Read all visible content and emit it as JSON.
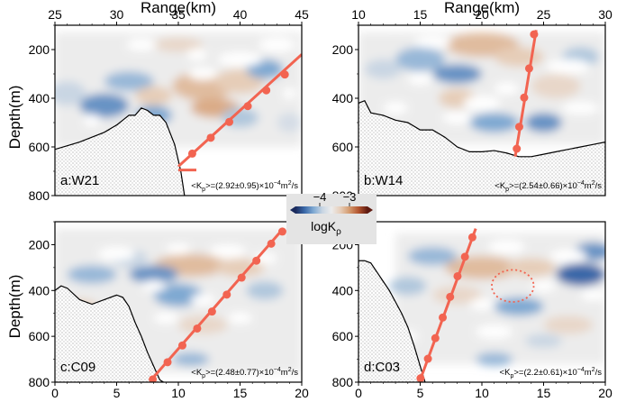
{
  "axis_titles": {
    "range": "Range(km)",
    "depth": "Depth(m)"
  },
  "colorbar": {
    "label": "logK",
    "label_sub": "ρ",
    "ticks": [
      {
        "value": -4,
        "label": "−4"
      },
      {
        "value": -3,
        "label": "−3"
      }
    ],
    "range": [
      -4.8,
      -2.4
    ],
    "colors": [
      "#1a2a5c",
      "#3a68a8",
      "#7fa9d2",
      "#c9d6e3",
      "#ececec",
      "#e6cdb8",
      "#d49a6e",
      "#b3552f",
      "#5e1a10"
    ]
  },
  "colors": {
    "trench_line": "#f26451",
    "seafloor": "#000000"
  },
  "chart_data": [
    {
      "type": "heatmap",
      "panel_label": "a:W21",
      "xaxis": "top",
      "yaxis": "left",
      "xlim": [
        25,
        45
      ],
      "ylim": [
        800,
        100
      ],
      "xticks": [
        "25",
        "30",
        "35",
        "40",
        "45"
      ],
      "yticks": [
        "200",
        "400",
        "600",
        "800"
      ],
      "annotation": {
        "pre": "<K",
        "sub1": "p",
        "mid": ">=(2.92±0.95)×10",
        "sup": "−4",
        "post1": "m",
        "sup2": "2",
        "post2": "/s"
      },
      "seafloor_profile": [
        [
          25,
          610
        ],
        [
          26,
          595
        ],
        [
          27,
          580
        ],
        [
          28,
          560
        ],
        [
          29,
          540
        ],
        [
          30,
          510
        ],
        [
          30.5,
          490
        ],
        [
          31,
          470
        ],
        [
          31.5,
          470
        ],
        [
          32,
          440
        ],
        [
          32.5,
          450
        ],
        [
          33,
          470
        ],
        [
          33.5,
          470
        ],
        [
          34,
          500
        ],
        [
          34.7,
          590
        ],
        [
          35.2,
          700
        ],
        [
          35.5,
          800
        ]
      ],
      "trench_line": [
        [
          35,
          680
        ],
        [
          45,
          220
        ]
      ],
      "trench_bar_y": 695,
      "trench_dots": [
        [
          36.2,
          620
        ],
        [
          37.7,
          555
        ],
        [
          39.2,
          490
        ],
        [
          40.7,
          425
        ],
        [
          42.2,
          360
        ],
        [
          43.7,
          295
        ]
      ],
      "holes": [
        [
          36.5,
          220,
          0.8,
          25
        ],
        [
          40,
          240,
          1.8,
          30
        ],
        [
          32,
          180,
          1.2,
          25
        ],
        [
          43,
          180,
          1.5,
          30
        ],
        [
          37,
          300,
          1.2,
          25
        ],
        [
          28,
          490,
          0.7,
          25
        ],
        [
          44,
          380,
          0.5,
          25
        ]
      ],
      "blobs": [
        [
          37,
          350,
          2.5,
          60,
          -3.2
        ],
        [
          40,
          330,
          2,
          50,
          -3.3
        ],
        [
          31,
          330,
          2,
          40,
          -4.1
        ],
        [
          29,
          430,
          2,
          50,
          -4.3
        ],
        [
          33,
          390,
          1.5,
          40,
          -3.3
        ],
        [
          38,
          440,
          2,
          40,
          -3.1
        ],
        [
          42,
          280,
          1.5,
          40,
          -4.2
        ],
        [
          26,
          380,
          1.5,
          50,
          -3.9
        ],
        [
          35,
          180,
          2,
          30,
          -3.4
        ],
        [
          33,
          470,
          1.5,
          40,
          -4.2
        ],
        [
          40,
          480,
          1.5,
          40,
          -4
        ],
        [
          44,
          500,
          1,
          40,
          -3.8
        ]
      ],
      "data_region": [
        25,
        45,
        130,
        600
      ],
      "extra_box": []
    },
    {
      "type": "heatmap",
      "panel_label": "b:W14",
      "xaxis": "top",
      "yaxis": "right",
      "xlim": [
        10,
        30
      ],
      "ylim": [
        800,
        100
      ],
      "xticks": [
        "10",
        "15",
        "20",
        "25",
        "30"
      ],
      "yticks": [
        "200",
        "400",
        "600",
        "800"
      ],
      "annotation": {
        "pre": "<K",
        "sub1": "p",
        "mid": ">=(2.54±0.66)×10",
        "sup": "−4",
        "post1": "m",
        "sup2": "2",
        "post2": "/s"
      },
      "seafloor_profile": [
        [
          10,
          420
        ],
        [
          10.5,
          410
        ],
        [
          11,
          460
        ],
        [
          12,
          470
        ],
        [
          13,
          490
        ],
        [
          14,
          500
        ],
        [
          15,
          530
        ],
        [
          16,
          530
        ],
        [
          17,
          560
        ],
        [
          18,
          600
        ],
        [
          19,
          620
        ],
        [
          20,
          620
        ],
        [
          21,
          615
        ],
        [
          22,
          625
        ],
        [
          23,
          640
        ],
        [
          24,
          640
        ],
        [
          25,
          630
        ],
        [
          26,
          620
        ],
        [
          27,
          610
        ],
        [
          28,
          600
        ],
        [
          29,
          590
        ],
        [
          30,
          580
        ]
      ],
      "trench_line": [
        [
          22.7,
          640
        ],
        [
          24.4,
          120
        ]
      ],
      "trench_bar_y": 0,
      "trench_dots": [
        [
          24.3,
          130
        ],
        [
          23.9,
          270
        ],
        [
          23.5,
          390
        ],
        [
          23.1,
          510
        ],
        [
          22.9,
          600
        ]
      ],
      "holes": [
        [
          13,
          440,
          1,
          25
        ],
        [
          18,
          480,
          1.2,
          25
        ],
        [
          20,
          420,
          1.5,
          30
        ],
        [
          22,
          360,
          1,
          25
        ],
        [
          27,
          270,
          1.8,
          30
        ],
        [
          16,
          170,
          1.5,
          25
        ],
        [
          28,
          440,
          1.5,
          25
        ],
        [
          15,
          320,
          1,
          25
        ]
      ],
      "blobs": [
        [
          20,
          180,
          3,
          50,
          -3.2
        ],
        [
          18,
          300,
          2,
          40,
          -4.3
        ],
        [
          23,
          230,
          2,
          40,
          -3.3
        ],
        [
          15,
          240,
          2,
          50,
          -4.1
        ],
        [
          26,
          350,
          2,
          50,
          -3.4
        ],
        [
          21,
          500,
          2,
          40,
          -4.2
        ],
        [
          12,
          280,
          1.5,
          40,
          -3.9
        ],
        [
          18,
          400,
          1.5,
          40,
          -3.3
        ],
        [
          28,
          230,
          1.5,
          40,
          -4
        ],
        [
          25,
          500,
          1.5,
          40,
          -4.3
        ],
        [
          13,
          160,
          1.5,
          30,
          -3.6
        ]
      ],
      "data_region": [
        10,
        30,
        130,
        590
      ],
      "extra_box": []
    },
    {
      "type": "heatmap",
      "panel_label": "c:C09",
      "xaxis": "bottom",
      "yaxis": "left",
      "xlim": [
        0,
        20
      ],
      "ylim": [
        800,
        100
      ],
      "xticks": [
        "0",
        "5",
        "10",
        "15",
        "20"
      ],
      "yticks": [
        "200",
        "400",
        "600",
        "800"
      ],
      "annotation": {
        "pre": "<K",
        "sub1": "p",
        "mid": ">=(2.48±0.77)×10",
        "sup": "−4",
        "post1": "m",
        "sup2": "2",
        "post2": "/s"
      },
      "seafloor_profile": [
        [
          0,
          400
        ],
        [
          0.5,
          380
        ],
        [
          1,
          390
        ],
        [
          2,
          440
        ],
        [
          3,
          460
        ],
        [
          4,
          440
        ],
        [
          5,
          420
        ],
        [
          5.5,
          430
        ],
        [
          6,
          470
        ],
        [
          6.5,
          540
        ],
        [
          7,
          600
        ],
        [
          7.5,
          670
        ],
        [
          8,
          730
        ],
        [
          8.5,
          790
        ],
        [
          8.8,
          800
        ]
      ],
      "trench_line": [
        [
          7.8,
          790
        ],
        [
          18.5,
          130
        ]
      ],
      "trench_bar_y": 0,
      "trench_dots": [
        [
          8,
          780
        ],
        [
          9.2,
          705
        ],
        [
          10.4,
          632
        ],
        [
          11.6,
          558
        ],
        [
          12.8,
          484
        ],
        [
          14,
          410
        ],
        [
          15.2,
          336
        ],
        [
          16.4,
          262
        ],
        [
          17.6,
          188
        ],
        [
          18.5,
          135
        ]
      ],
      "holes": [
        [
          5,
          240,
          1.5,
          30
        ],
        [
          10,
          220,
          1,
          25
        ],
        [
          14,
          230,
          1.5,
          30
        ],
        [
          8,
          380,
          1,
          25
        ],
        [
          12,
          440,
          1,
          25
        ],
        [
          17,
          260,
          1,
          25
        ],
        [
          9,
          520,
          1,
          25
        ],
        [
          15,
          520,
          1,
          25
        ]
      ],
      "blobs": [
        [
          11,
          290,
          3,
          50,
          -3.2
        ],
        [
          8,
          330,
          2,
          40,
          -4.3
        ],
        [
          15,
          300,
          2,
          40,
          -3.3
        ],
        [
          3,
          330,
          2,
          40,
          -4.1
        ],
        [
          10,
          420,
          2,
          50,
          -4.2
        ],
        [
          12,
          550,
          2,
          40,
          -3.4
        ],
        [
          6,
          260,
          1.5,
          40,
          -3.9
        ],
        [
          17,
          400,
          1.5,
          40,
          -4
        ],
        [
          14,
          650,
          1.5,
          40,
          -3.6
        ],
        [
          11,
          700,
          1.5,
          30,
          -4.1
        ],
        [
          2,
          480,
          1.5,
          40,
          -3.3
        ]
      ],
      "data_region": [
        0,
        20,
        130,
        760
      ],
      "extra_box": []
    },
    {
      "type": "heatmap",
      "panel_label": "d:C03",
      "xaxis": "bottom",
      "yaxis": "right",
      "xlim": [
        0,
        20
      ],
      "ylim": [
        800,
        100
      ],
      "xticks": [
        "0",
        "5",
        "10",
        "15",
        "20"
      ],
      "yticks": [
        "200",
        "400",
        "600",
        "800"
      ],
      "annotation": {
        "pre": "<K",
        "sub1": "p",
        "mid": ">=(2.2±0.61)×10",
        "sup": "−4",
        "post1": "m",
        "sup2": "2",
        "post2": "/s"
      },
      "seafloor_profile": [
        [
          0,
          270
        ],
        [
          0.5,
          270
        ],
        [
          1,
          280
        ],
        [
          1.5,
          320
        ],
        [
          2,
          360
        ],
        [
          2.5,
          400
        ],
        [
          3,
          450
        ],
        [
          3.5,
          500
        ],
        [
          4,
          560
        ],
        [
          4.5,
          640
        ],
        [
          5,
          730
        ],
        [
          5.4,
          800
        ]
      ],
      "trench_line": [
        [
          5,
          790
        ],
        [
          9.5,
          130
        ]
      ],
      "trench_bar_y": 0,
      "trench_dots": [
        [
          5.1,
          775
        ],
        [
          5.7,
          690
        ],
        [
          6.3,
          600
        ],
        [
          6.9,
          510
        ],
        [
          7.5,
          420
        ],
        [
          8.1,
          330
        ],
        [
          8.7,
          245
        ],
        [
          9.3,
          160
        ]
      ],
      "holes": [
        [
          12,
          210,
          1.5,
          30
        ],
        [
          17,
          250,
          1.5,
          30
        ],
        [
          10,
          460,
          1,
          25
        ],
        [
          15,
          380,
          1,
          25
        ],
        [
          11,
          580,
          1.5,
          30
        ],
        [
          19,
          420,
          1,
          25
        ],
        [
          4,
          600,
          0.8,
          25
        ]
      ],
      "blobs": [
        [
          10,
          300,
          3,
          50,
          -3.2
        ],
        [
          6,
          250,
          2,
          40,
          -4.1
        ],
        [
          14,
          300,
          2,
          40,
          -3.3
        ],
        [
          18,
          330,
          2,
          50,
          -4.5
        ],
        [
          8,
          420,
          2,
          40,
          -3.4
        ],
        [
          13,
          470,
          2,
          40,
          -4.2
        ],
        [
          17,
          550,
          2,
          40,
          -3.4
        ],
        [
          4,
          380,
          1.5,
          40,
          -4
        ],
        [
          11,
          700,
          1.5,
          30,
          -4.1
        ],
        [
          19,
          230,
          1.5,
          40,
          -4.3
        ],
        [
          15,
          620,
          1.5,
          30,
          -3.9
        ]
      ],
      "data_region": [
        3,
        20,
        150,
        720
      ],
      "extra_box": [],
      "circle": [
        12.5,
        380,
        1.7,
        70
      ]
    }
  ]
}
